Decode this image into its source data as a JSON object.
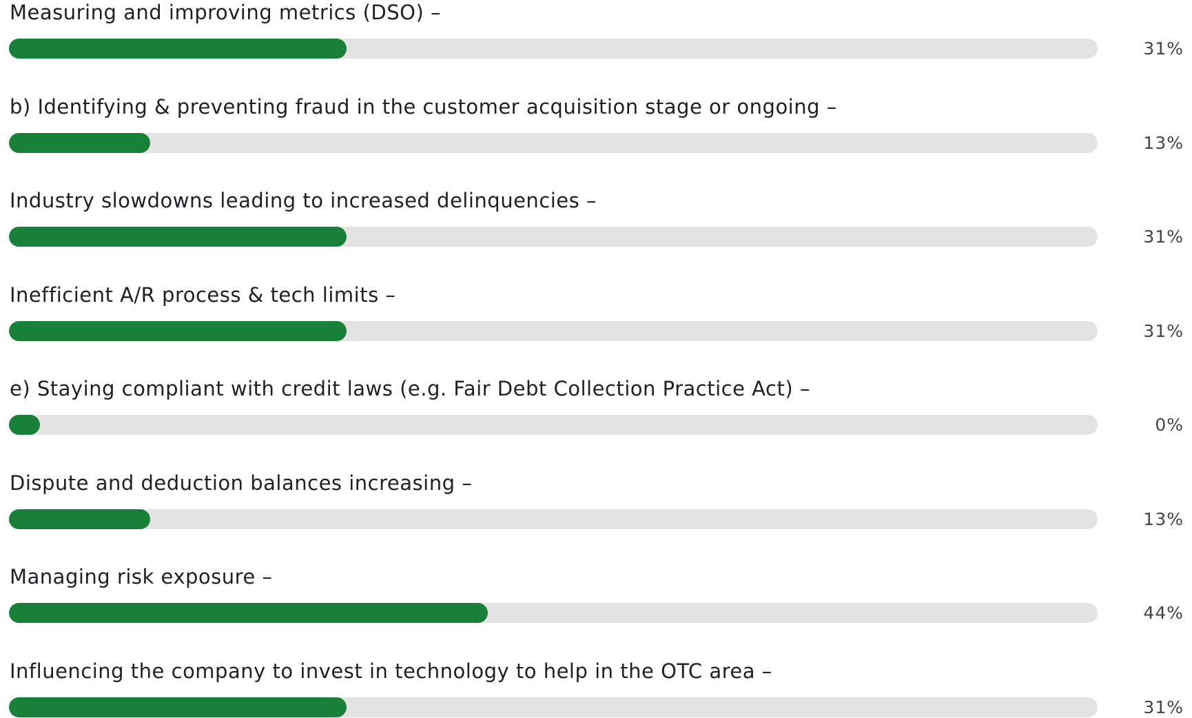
{
  "poll": {
    "options": [
      {
        "label": "Measuring and improving metrics (DSO) –",
        "value": 31,
        "value_label": "31%"
      },
      {
        "label": "b) Identifying & preventing fraud in the customer acquisition stage or ongoing –",
        "value": 13,
        "value_label": "13%"
      },
      {
        "label": "Industry slowdowns leading to increased delinquencies –",
        "value": 31,
        "value_label": "31%"
      },
      {
        "label": "Inefficient A/R process & tech limits –",
        "value": 31,
        "value_label": "31%"
      },
      {
        "label": "e) Staying compliant with credit laws (e.g. Fair Debt Collection Practice Act) –",
        "value": 0,
        "value_label": "0%"
      },
      {
        "label": "Dispute and deduction balances increasing –",
        "value": 13,
        "value_label": "13%"
      },
      {
        "label": "Managing risk exposure –",
        "value": 44,
        "value_label": "44%"
      },
      {
        "label": "Influencing the company to invest in technology to help in the OTC area –",
        "value": 31,
        "value_label": "31%"
      }
    ],
    "scale_max": 100
  }
}
